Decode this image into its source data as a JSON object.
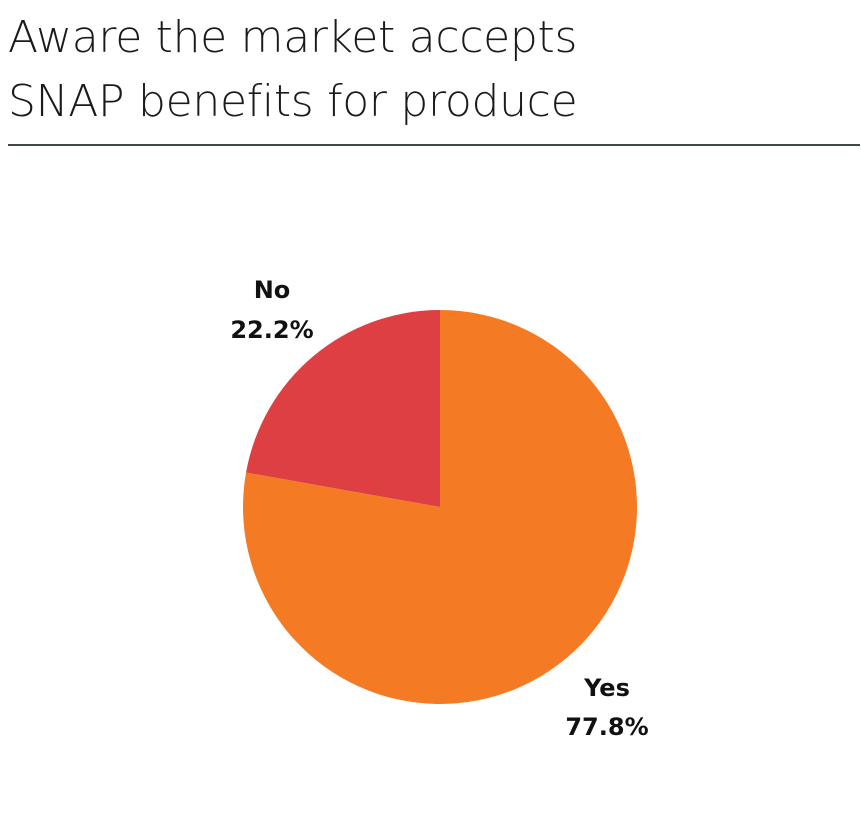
{
  "title": {
    "line1": "Aware the market accepts",
    "line2": "SNAP benefits for produce"
  },
  "chart_data": {
    "type": "pie",
    "title": "Aware the market accepts SNAP benefits for produce",
    "slices": [
      {
        "label": "Yes",
        "value": 77.8,
        "value_label": "77.8%",
        "color": "#f47a24"
      },
      {
        "label": "No",
        "value": 22.2,
        "value_label": "22.2%",
        "color": "#dd3f42"
      }
    ],
    "start": "12 o'clock",
    "direction": "clockwise",
    "legend": "none"
  }
}
